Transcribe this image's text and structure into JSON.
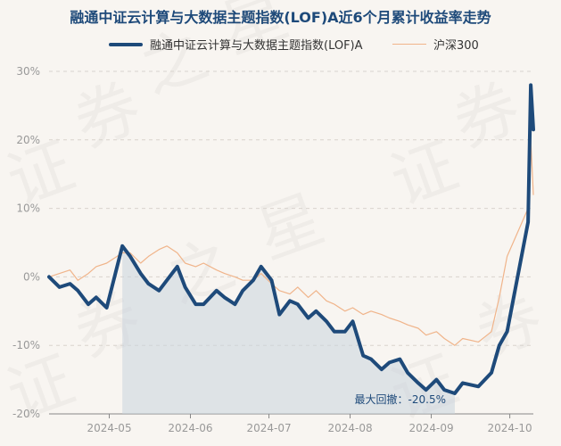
{
  "chart_data": {
    "type": "line",
    "title": "融通中证云计算与大数据主题指数(LOF)A近6个月累计收益率走势",
    "xlabel": "",
    "ylabel": "",
    "x_ticks": [
      "2024-05",
      "2024-06",
      "2024-07",
      "2024-08",
      "2024-09",
      "2024-10"
    ],
    "y_ticks": [
      "30%",
      "20%",
      "10%",
      "0%",
      "-10%",
      "-20%"
    ],
    "ylim": [
      -20,
      30
    ],
    "grid": "horizontal dashed",
    "legend": "top-center",
    "annotation": "最大回撤：-20.5%",
    "x": [
      "2024-04-08",
      "2024-04-12",
      "2024-04-16",
      "2024-04-19",
      "2024-04-23",
      "2024-04-26",
      "2024-04-30",
      "2024-05-06",
      "2024-05-09",
      "2024-05-13",
      "2024-05-16",
      "2024-05-20",
      "2024-05-23",
      "2024-05-27",
      "2024-05-30",
      "2024-06-03",
      "2024-06-06",
      "2024-06-11",
      "2024-06-14",
      "2024-06-18",
      "2024-06-21",
      "2024-06-25",
      "2024-06-28",
      "2024-07-02",
      "2024-07-05",
      "2024-07-09",
      "2024-07-12",
      "2024-07-16",
      "2024-07-19",
      "2024-07-23",
      "2024-07-26",
      "2024-07-30",
      "2024-08-02",
      "2024-08-06",
      "2024-08-09",
      "2024-08-13",
      "2024-08-16",
      "2024-08-20",
      "2024-08-23",
      "2024-08-27",
      "2024-08-30",
      "2024-09-03",
      "2024-09-06",
      "2024-09-10",
      "2024-09-13",
      "2024-09-19",
      "2024-09-24",
      "2024-09-27",
      "2024-09-30",
      "2024-10-08",
      "2024-10-09",
      "2024-10-10"
    ],
    "series": [
      {
        "name": "融通中证云计算与大数据主题指数(LOF)A",
        "color": "#1e4a7a",
        "values": [
          0.0,
          -1.5,
          -1.0,
          -2.0,
          -4.0,
          -3.0,
          -4.5,
          4.5,
          3.0,
          0.5,
          -1.0,
          -2.0,
          -0.5,
          1.5,
          -1.5,
          -4.0,
          -4.0,
          -2.0,
          -3.0,
          -4.0,
          -2.0,
          -0.5,
          1.5,
          -0.5,
          -5.5,
          -3.5,
          -4.0,
          -6.0,
          -5.0,
          -6.5,
          -8.0,
          -8.0,
          -6.5,
          -11.5,
          -12.0,
          -13.5,
          -12.5,
          -12.0,
          -14.0,
          -15.5,
          -16.5,
          -15.0,
          -16.5,
          -17.0,
          -15.5,
          -16.0,
          -14.0,
          -10.0,
          -8.0,
          8.0,
          28.0,
          21.5
        ]
      },
      {
        "name": "沪深300",
        "color": "#f0b48a",
        "values": [
          0.0,
          0.5,
          1.0,
          -0.5,
          0.5,
          1.5,
          2.0,
          3.5,
          3.5,
          2.0,
          3.0,
          4.0,
          4.5,
          3.5,
          2.0,
          1.5,
          2.0,
          1.0,
          0.5,
          0.0,
          -0.5,
          -0.5,
          0.5,
          -1.0,
          -2.0,
          -2.5,
          -1.5,
          -3.0,
          -2.0,
          -3.5,
          -4.0,
          -5.0,
          -4.5,
          -5.5,
          -5.0,
          -5.5,
          -6.0,
          -6.5,
          -7.0,
          -7.5,
          -8.5,
          -8.0,
          -9.0,
          -10.0,
          -9.0,
          -9.5,
          -8.0,
          -3.0,
          3.0,
          10.0,
          20.0,
          12.0
        ]
      }
    ]
  }
}
